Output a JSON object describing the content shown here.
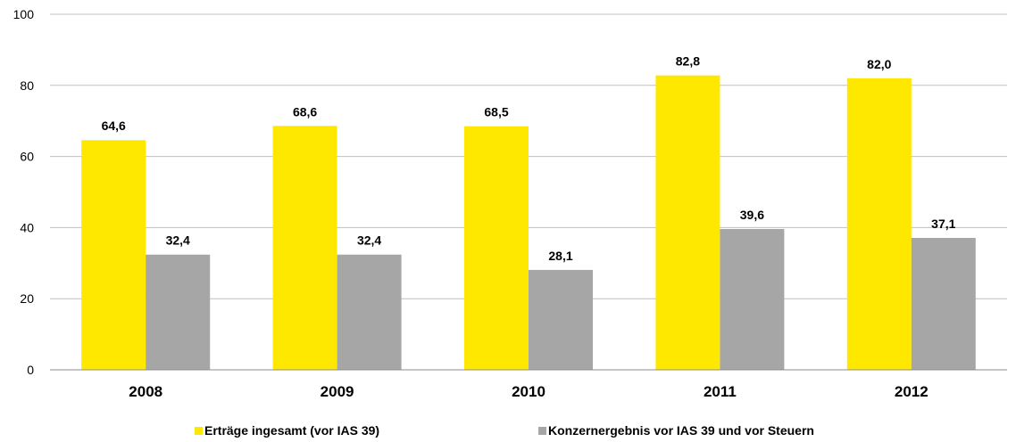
{
  "chart_data": {
    "type": "bar",
    "categories": [
      "2008",
      "2009",
      "2010",
      "2011",
      "2012"
    ],
    "series": [
      {
        "name": "Erträge ingesamt (vor IAS 39)",
        "color": "#ffe800",
        "values": [
          64.6,
          68.6,
          68.5,
          82.8,
          82.0
        ],
        "labels": [
          "64,6",
          "68,6",
          "68,5",
          "82,8",
          "82,0"
        ]
      },
      {
        "name": "Konzernergebnis vor IAS 39 und vor Steuern",
        "color": "#a6a6a6",
        "values": [
          32.4,
          32.4,
          28.1,
          39.6,
          37.1
        ],
        "labels": [
          "32,4",
          "32,4",
          "28,1",
          "39,6",
          "37,1"
        ]
      }
    ],
    "ylim": [
      0,
      100
    ],
    "yticks": [
      "0",
      "20",
      "40",
      "60",
      "80",
      "100"
    ],
    "ytick_values": [
      0,
      20,
      40,
      60,
      80,
      100
    ],
    "grid": true,
    "legend": "bottom-center",
    "title": "",
    "xlabel": "",
    "ylabel": ""
  }
}
